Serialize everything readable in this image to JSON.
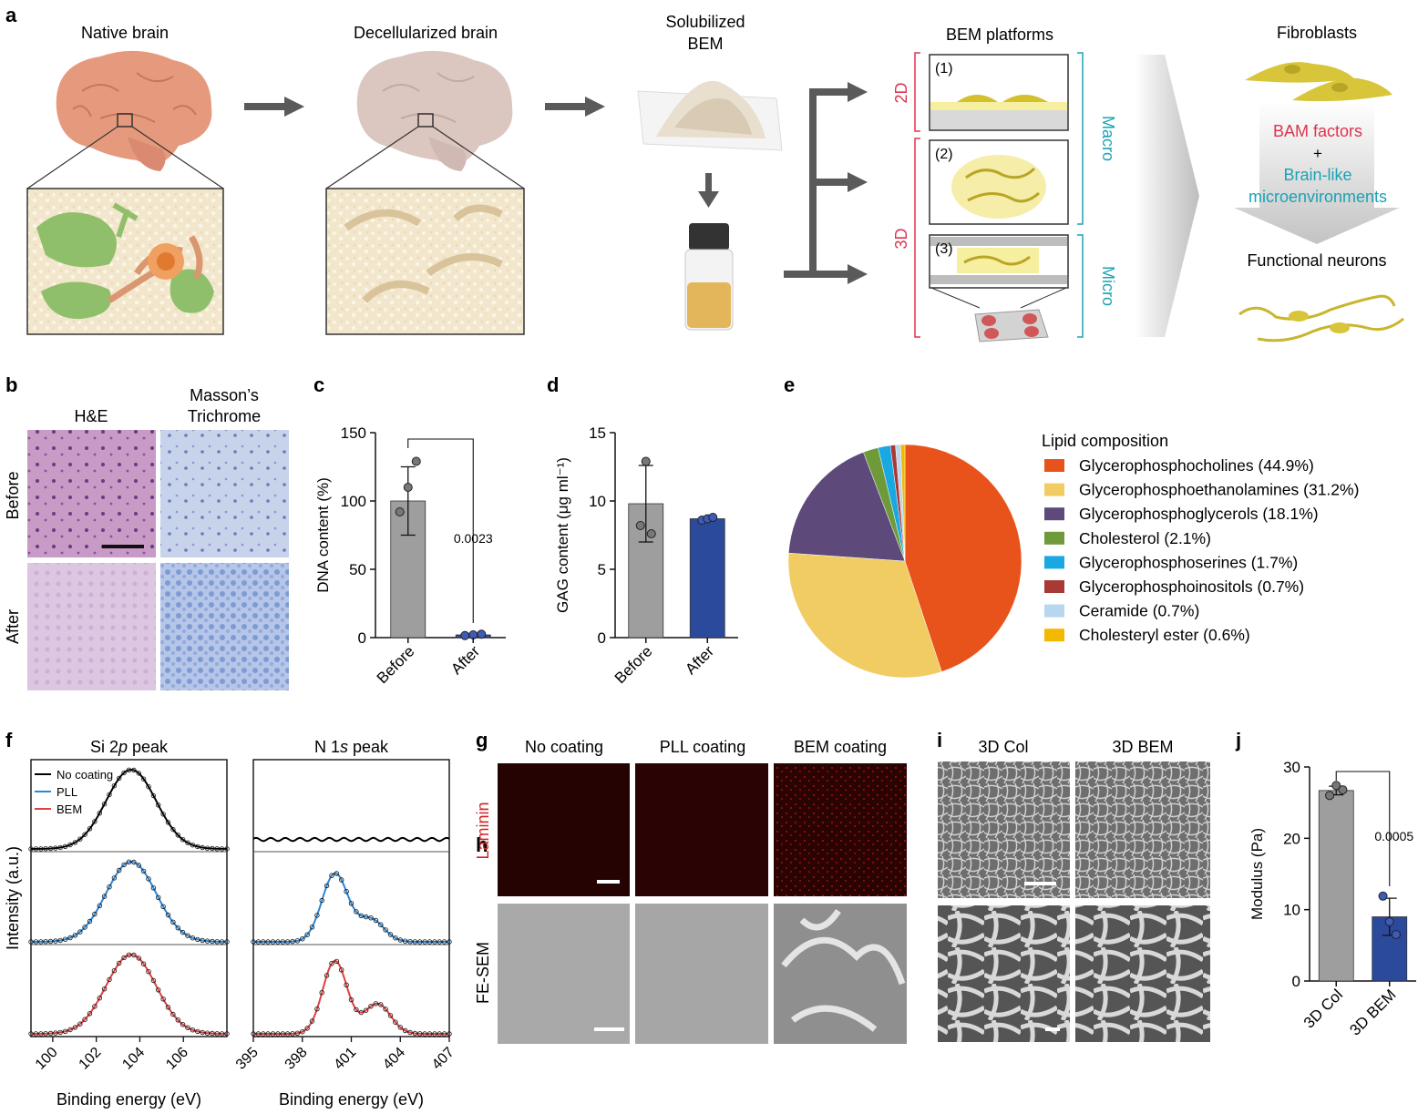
{
  "panel_letters": [
    "a",
    "b",
    "c",
    "d",
    "e",
    "f",
    "g",
    "h",
    "i",
    "j"
  ],
  "panel_a": {
    "native_brain": "Native brain",
    "decellularized_brain": "Decellularized brain",
    "solubilized_line1": "Solubilized",
    "solubilized_line2": "BEM",
    "platforms_title": "BEM platforms",
    "label_2d": "2D",
    "label_3d": "3D",
    "label_macro": "Macro",
    "label_micro": "Micro",
    "step1": "(1)",
    "step2": "(2)",
    "step3": "(3)",
    "fibroblasts": "Fibroblasts",
    "bam_factors": "BAM factors",
    "plus": "+",
    "brainlike_line1": "Brain-like",
    "brainlike_line2": "microenvironments",
    "functional_neurons": "Functional neurons"
  },
  "panel_b": {
    "col1": "H&E",
    "col2_line1": "Masson’s",
    "col2_line2": "Trichrome",
    "row1": "Before",
    "row2": "After"
  },
  "colors": {
    "before_bar": "#9e9e9e",
    "after_bar": "#2c4a9c",
    "red_label": "#e0324f",
    "teal_label": "#1aa3b5",
    "neuron_yellow": "#d8c53a",
    "arrow_gray": "#5a5a5a"
  },
  "chart_data": [
    {
      "id": "c",
      "type": "bar",
      "categories": [
        "Before",
        "After"
      ],
      "values": [
        100,
        2
      ],
      "error": [
        25,
        0.5
      ],
      "points": [
        [
          92,
          110,
          129
        ],
        [
          1.5,
          2,
          2.5
        ]
      ],
      "ylabel": "DNA content (%)",
      "ylim": [
        0,
        150
      ],
      "yticks": [
        "0",
        "50",
        "100",
        "150"
      ],
      "annotation": "0.0023"
    },
    {
      "id": "d",
      "type": "bar",
      "categories": [
        "Before",
        "After"
      ],
      "values": [
        9.8,
        8.7
      ],
      "error": [
        2.8,
        0.15
      ],
      "points": [
        [
          8.2,
          12.9,
          7.6
        ],
        [
          8.6,
          8.7,
          8.8
        ]
      ],
      "ylabel": "GAG content (μg ml⁻¹)",
      "ylim": [
        0,
        15
      ],
      "yticks": [
        "0",
        "5",
        "10",
        "15"
      ]
    },
    {
      "id": "e",
      "type": "pie",
      "title": "Lipid composition",
      "series": [
        {
          "name": "Glycerophosphocholines (44.9%)",
          "value": 44.9,
          "color": "#e8531c"
        },
        {
          "name": "Glycerophosphoethanolamines (31.2%)",
          "value": 31.2,
          "color": "#f0cc62"
        },
        {
          "name": "Glycerophosphoglycerols (18.1%)",
          "value": 18.1,
          "color": "#5d4a7b"
        },
        {
          "name": "Cholesterol (2.1%)",
          "value": 2.1,
          "color": "#6e9a3a"
        },
        {
          "name": "Glycerophosphoserines (1.7%)",
          "value": 1.7,
          "color": "#1aa8e3"
        },
        {
          "name": "Glycerophosphoinositols (0.7%)",
          "value": 0.7,
          "color": "#a83a35"
        },
        {
          "name": "Ceramide (0.7%)",
          "value": 0.7,
          "color": "#b8d6ee"
        },
        {
          "name": "Cholesteryl ester (0.6%)",
          "value": 0.6,
          "color": "#f3b800"
        }
      ]
    },
    {
      "id": "f",
      "type": "line",
      "subplots": [
        {
          "title_pre": "Si 2",
          "title_ital": "p",
          "title_post": " peak",
          "xticks": [
            "100",
            "102",
            "104",
            "106"
          ],
          "xlim": [
            99,
            108
          ]
        },
        {
          "title_pre": "N 1",
          "title_ital": "s",
          "title_post": " peak",
          "xticks": [
            "395",
            "398",
            "401",
            "404",
            "407"
          ],
          "xlim": [
            395,
            407
          ]
        }
      ],
      "series": [
        {
          "name": "No coating",
          "color": "#000000"
        },
        {
          "name": "PLL",
          "color": "#2a86d6"
        },
        {
          "name": "BEM",
          "color": "#e04040"
        }
      ],
      "xlabel": "Binding energy (eV)",
      "ylabel": "Intensity (a.u.)"
    },
    {
      "id": "j",
      "type": "bar",
      "categories": [
        "3D Col",
        "3D BEM"
      ],
      "values": [
        26.7,
        9
      ],
      "error": [
        0.6,
        2.6
      ],
      "points": [
        [
          26,
          27.4,
          26.8
        ],
        [
          11.9,
          8.3,
          6.5
        ]
      ],
      "ylabel": "Modulus (Pa)",
      "ylim": [
        0,
        30
      ],
      "yticks": [
        "0",
        "10",
        "20",
        "30"
      ],
      "annotation": "0.0005"
    }
  ],
  "panel_g": {
    "col1": "No coating",
    "col2": "PLL coating",
    "col3": "BEM coating",
    "row_label": "Laminin"
  },
  "panel_h": {
    "row_label": "FE-SEM"
  },
  "panel_i": {
    "col1": "3D Col",
    "col2": "3D BEM"
  }
}
